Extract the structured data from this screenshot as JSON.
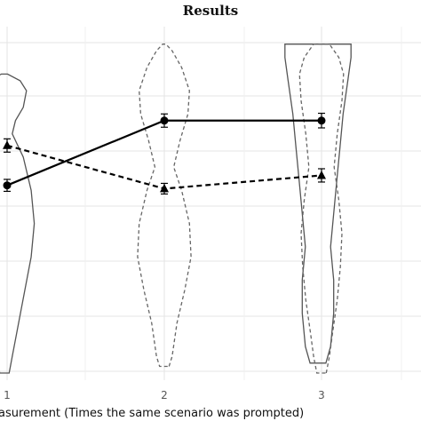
{
  "chart_data": {
    "type": "line",
    "title": "Results",
    "xlabel": "asurement (Times the same scenario was prompted)",
    "ylabel": "",
    "x": [
      1,
      2,
      3
    ],
    "x_tick_labels": [
      "1",
      "2",
      "3"
    ],
    "ylim": [
      0,
      1
    ],
    "grid": true,
    "series": [
      {
        "line_style": "solid",
        "marker": "circle",
        "values": [
          0.565,
          0.76,
          0.76
        ],
        "error": [
          0.018,
          0.02,
          0.022
        ]
      },
      {
        "line_style": "dashed",
        "marker": "triangle",
        "values": [
          0.685,
          0.555,
          0.595
        ],
        "error": [
          0.02,
          0.016,
          0.02
        ]
      }
    ],
    "violins": [
      {
        "line_style": "solid",
        "profile": [
          [
            0.0,
            0.03
          ],
          [
            0.05,
            0.05
          ],
          [
            0.15,
            0.09
          ],
          [
            0.25,
            0.13
          ],
          [
            0.35,
            0.17
          ],
          [
            0.45,
            0.19
          ],
          [
            0.55,
            0.17
          ],
          [
            0.65,
            0.12
          ],
          [
            0.72,
            0.05
          ],
          [
            0.76,
            0.07
          ],
          [
            0.8,
            0.12
          ],
          [
            0.85,
            0.14
          ],
          [
            0.88,
            0.1
          ],
          [
            0.9,
            0.02
          ]
        ]
      },
      {
        "line_style": "dashed",
        "profile": [
          [
            0.02,
            0.03
          ],
          [
            0.05,
            0.05
          ],
          [
            0.15,
            0.08
          ],
          [
            0.25,
            0.13
          ],
          [
            0.35,
            0.17
          ],
          [
            0.45,
            0.16
          ],
          [
            0.55,
            0.11
          ],
          [
            0.62,
            0.06
          ],
          [
            0.7,
            0.1
          ],
          [
            0.78,
            0.15
          ],
          [
            0.85,
            0.16
          ],
          [
            0.92,
            0.11
          ],
          [
            0.97,
            0.05
          ],
          [
            0.99,
            0.01
          ]
        ]
      },
      {
        "line_style": "solid",
        "profile": [
          [
            0.03,
            0.05
          ],
          [
            0.08,
            0.08
          ],
          [
            0.18,
            0.1
          ],
          [
            0.28,
            0.1
          ],
          [
            0.38,
            0.08
          ],
          [
            0.48,
            0.1
          ],
          [
            0.58,
            0.12
          ],
          [
            0.68,
            0.14
          ],
          [
            0.78,
            0.16
          ],
          [
            0.88,
            0.19
          ],
          [
            0.95,
            0.21
          ],
          [
            0.99,
            0.21
          ]
        ]
      },
      {
        "line_style": "dashed",
        "profile": [
          [
            0.0,
            0.03
          ],
          [
            0.05,
            0.05
          ],
          [
            0.12,
            0.07
          ],
          [
            0.22,
            0.1
          ],
          [
            0.32,
            0.12
          ],
          [
            0.42,
            0.13
          ],
          [
            0.52,
            0.11
          ],
          [
            0.62,
            0.08
          ],
          [
            0.72,
            0.1
          ],
          [
            0.82,
            0.13
          ],
          [
            0.9,
            0.14
          ],
          [
            0.95,
            0.11
          ],
          [
            0.99,
            0.05
          ]
        ]
      }
    ]
  }
}
